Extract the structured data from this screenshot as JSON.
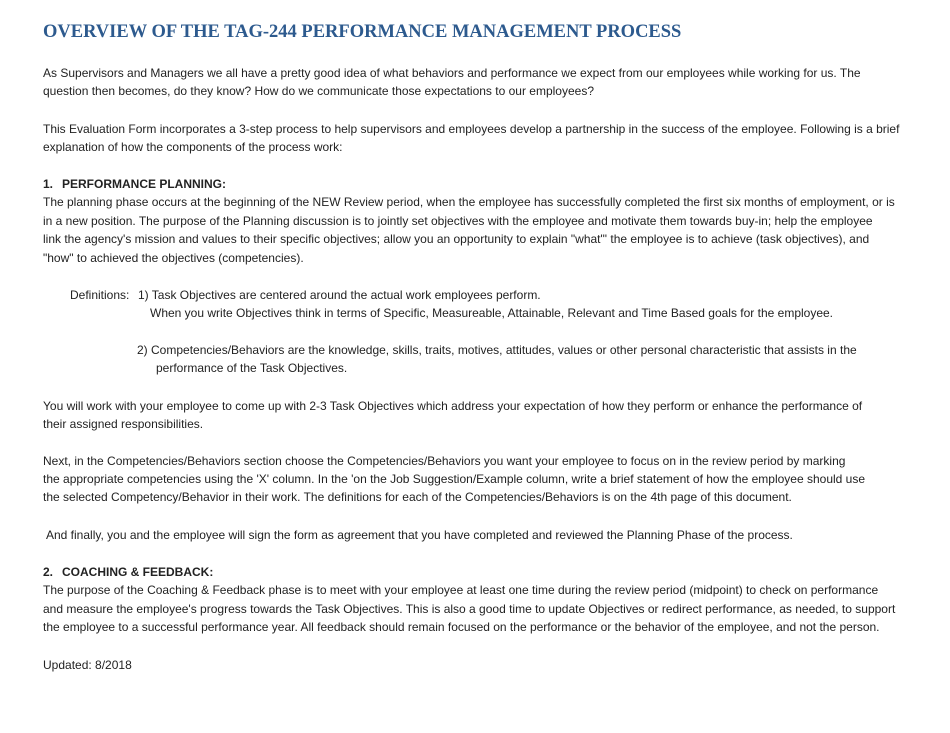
{
  "title": "OVERVIEW OF THE TAG-244 PERFORMANCE MANAGEMENT PROCESS",
  "intro": {
    "lines": [
      "As Supervisors and Managers we all have a pretty good idea of what behaviors and performance we expect from our employees while working for us. The",
      "question then becomes, do they know?  How do we communicate those expectations to our employees?"
    ]
  },
  "process_intro": {
    "lines": [
      "This Evaluation Form incorporates a 3-step process to help supervisors and employees develop a partnership in the success of the employee. Following is a brief",
      "explanation of how the components of the process work:"
    ]
  },
  "section_1": {
    "number": "1.",
    "heading": "PERFORMANCE PLANNING:",
    "lines": [
      "The planning phase occurs at the beginning of the NEW Review period, when the employee has successfully completed the first six months of employment, or is",
      "in a new position. The purpose of the Planning discussion is to jointly set objectives with the employee and motivate them towards buy-in; help the employee",
      "link the agency's mission and values to their specific objectives; allow you an opportunity to explain \"what\"' the employee is to achieve (task objectives), and",
      "\"how\" to achieved the objectives (competencies)."
    ],
    "definitions": {
      "label": "Definitions:",
      "items": [
        {
          "lines": [
            "1) Task Objectives are centered around the actual work employees perform.",
            "When you write Objectives think in terms of Specific, Measureable, Attainable, Relevant and Time Based goals for the employee."
          ]
        },
        {
          "lines": [
            "2) Competencies/Behaviors are the knowledge, skills, traits, motives, attitudes, values or other personal characteristic that assists in the",
            "performance of the Task Objectives."
          ]
        }
      ]
    },
    "paragraphs": [
      {
        "lines": [
          "You will work with your employee to come up with 2-3 Task Objectives which address your expectation of how they perform or enhance the performance of",
          "their assigned responsibilities."
        ]
      },
      {
        "lines": [
          "Next, in the Competencies/Behaviors section choose the Competencies/Behaviors you want your employee to focus on in the review period by marking",
          "the appropriate competencies using the 'X' column. In the 'on the Job Suggestion/Example column, write a brief statement of how the employee should use",
          "the selected Competency/Behavior in their work. The definitions for each of the Competencies/Behaviors is on the 4th page of this document."
        ]
      },
      {
        "lines": [
          "And finally, you and the employee will sign the form as agreement that you have completed and reviewed the Planning Phase of the process."
        ]
      }
    ]
  },
  "section_2": {
    "number": "2.",
    "heading": "COACHING & FEEDBACK:",
    "lines": [
      "The purpose of the Coaching & Feedback phase is to meet with your employee at least one time during the review period (midpoint) to check on performance",
      "and measure the employee's progress towards the Task Objectives. This is also a good time to update Objectives or redirect performance, as needed, to support",
      "the employee to a successful performance year. All feedback should remain focused on the performance or the behavior of the employee, and not the person."
    ]
  },
  "footer": "Updated: 8/2018"
}
